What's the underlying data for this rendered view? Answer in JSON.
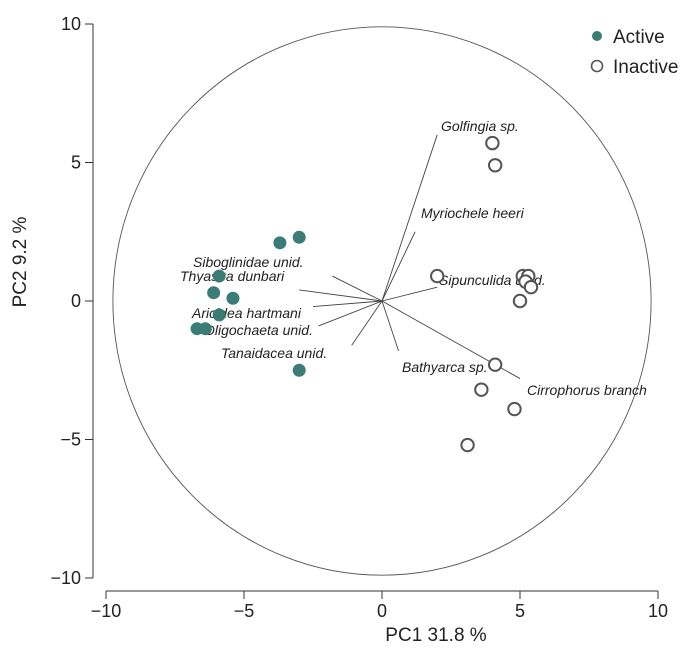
{
  "chart_data": {
    "type": "scatter",
    "xlabel": "PC1  31.8 %",
    "ylabel": "PC2  9.2 %",
    "xlim": [
      -10,
      10
    ],
    "ylim": [
      -10,
      10
    ],
    "xticks": [
      "-10",
      "-5",
      "0",
      "5",
      "10"
    ],
    "yticks": [
      "-10",
      "-5",
      "0",
      "5",
      "10"
    ],
    "legend_position": "top-right",
    "correlation_circle": true,
    "series": [
      {
        "name": "Active",
        "color": "#3a7d77",
        "filled": true,
        "points": [
          {
            "x": -3.7,
            "y": 2.1
          },
          {
            "x": -3.0,
            "y": 2.3
          },
          {
            "x": -5.9,
            "y": 0.9
          },
          {
            "x": -6.1,
            "y": 0.3
          },
          {
            "x": -5.4,
            "y": 0.1
          },
          {
            "x": -5.9,
            "y": -0.5
          },
          {
            "x": -6.7,
            "y": -1.0
          },
          {
            "x": -6.4,
            "y": -1.0
          },
          {
            "x": -3.0,
            "y": -2.5
          }
        ]
      },
      {
        "name": "Inactive",
        "color": "#555555",
        "filled": false,
        "points": [
          {
            "x": 4.0,
            "y": 5.7
          },
          {
            "x": 4.1,
            "y": 4.9
          },
          {
            "x": 2.0,
            "y": 0.9
          },
          {
            "x": 5.1,
            "y": 0.9
          },
          {
            "x": 5.3,
            "y": 0.9
          },
          {
            "x": 5.2,
            "y": 0.7
          },
          {
            "x": 5.4,
            "y": 0.5
          },
          {
            "x": 5.0,
            "y": 0.0
          },
          {
            "x": 4.1,
            "y": -2.3
          },
          {
            "x": 3.6,
            "y": -3.2
          },
          {
            "x": 4.8,
            "y": -3.9
          },
          {
            "x": 3.1,
            "y": -5.2
          }
        ]
      }
    ],
    "loadings": [
      {
        "label": "Golfingia sp.",
        "x": 2.0,
        "y": 6.0
      },
      {
        "label": "Myriochele heeri",
        "x": 1.2,
        "y": 2.5
      },
      {
        "label": "Siboglinidae unid.",
        "x": -1.8,
        "y": 0.9
      },
      {
        "label": "Thyasira dunbari",
        "x": -3.0,
        "y": 0.4
      },
      {
        "label": "Sipunculida unid.",
        "x": 2.0,
        "y": 0.5
      },
      {
        "label": "Aricidea hartmani",
        "x": -2.5,
        "y": -0.2
      },
      {
        "label": "Oligochaeta unid.",
        "x": -2.3,
        "y": -0.9
      },
      {
        "label": "Tanaidacea unid.",
        "x": -1.1,
        "y": -1.6
      },
      {
        "label": "Bathyarca sp.",
        "x": 0.6,
        "y": -1.8
      },
      {
        "label": "Cirrophorus branch",
        "x": 5.0,
        "y": -2.8
      }
    ]
  }
}
